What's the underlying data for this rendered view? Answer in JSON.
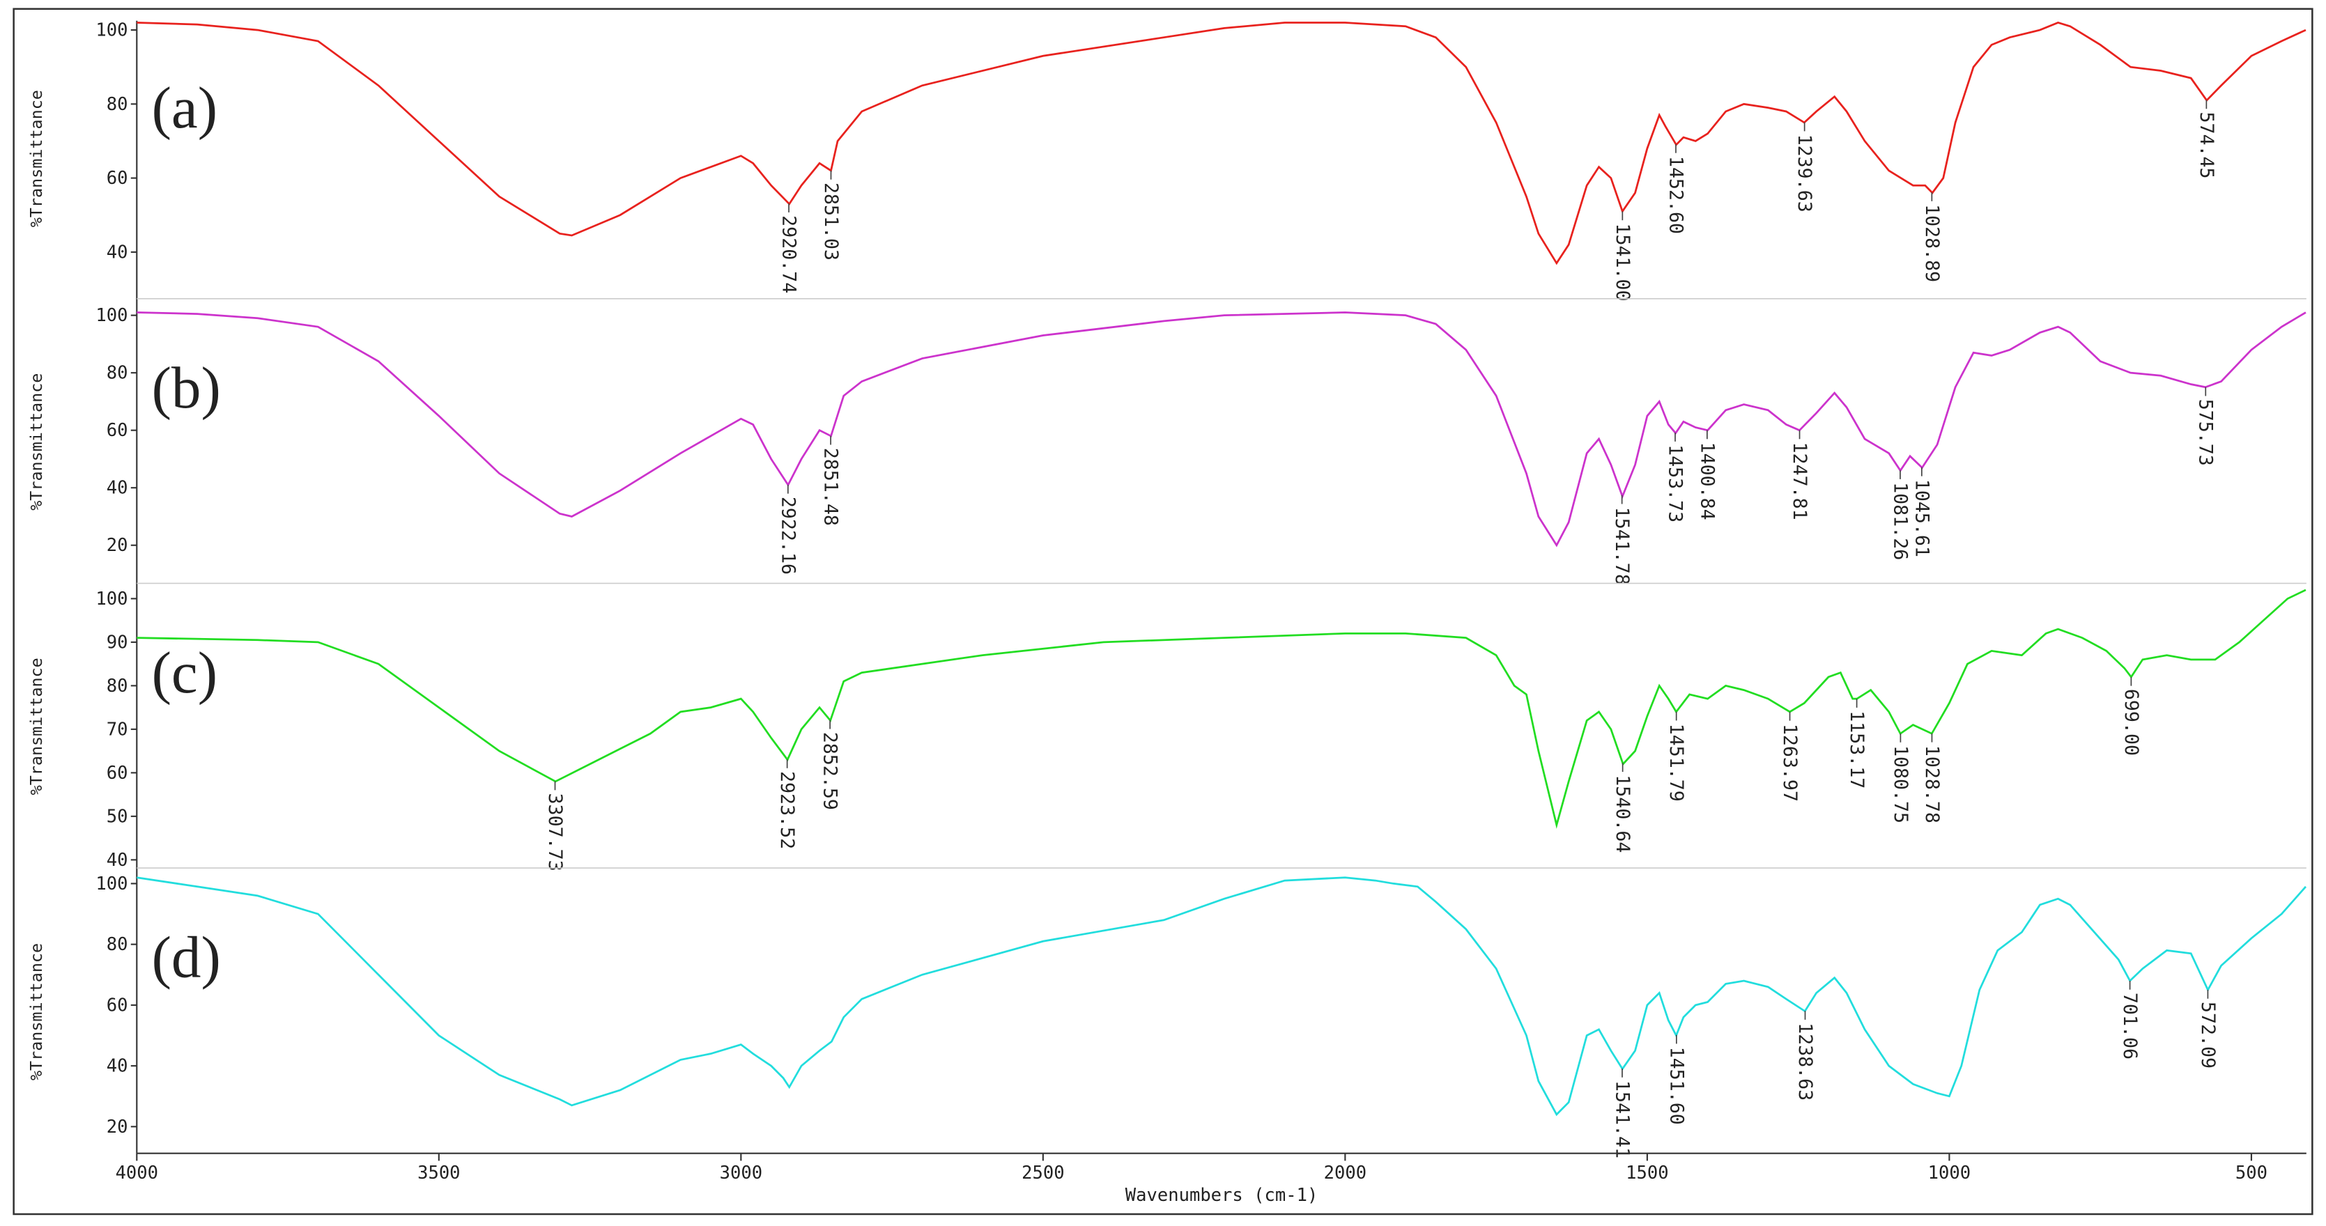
{
  "chart_data": [
    {
      "type": "line",
      "title": "(a)",
      "ylabel": "%Transmittance",
      "xlim": [
        4000,
        409
      ],
      "ylim": [
        28,
        102.5
      ],
      "yticks": [
        40,
        60,
        80,
        100
      ],
      "series": [
        {
          "name": "(a)",
          "color": "#e8221e",
          "x": [
            4000,
            3900,
            3800,
            3700,
            3600,
            3500,
            3400,
            3300,
            3280,
            3200,
            3100,
            3050,
            3000,
            2980,
            2950,
            2920,
            2900,
            2870,
            2851,
            2840,
            2800,
            2700,
            2500,
            2300,
            2200,
            2100,
            2000,
            1900,
            1850,
            1800,
            1750,
            1700,
            1680,
            1650,
            1630,
            1600,
            1580,
            1560,
            1541,
            1520,
            1500,
            1480,
            1470,
            1452,
            1440,
            1420,
            1400,
            1370,
            1340,
            1300,
            1270,
            1240,
            1220,
            1190,
            1170,
            1140,
            1100,
            1060,
            1040,
            1028,
            1010,
            990,
            960,
            930,
            900,
            850,
            820,
            800,
            750,
            700,
            650,
            600,
            574,
            550,
            500,
            450,
            410
          ],
          "values": [
            102,
            101.5,
            100,
            97,
            85,
            70,
            55,
            45,
            44.5,
            50,
            60,
            63,
            66,
            64,
            58,
            53,
            58,
            64,
            62,
            70,
            78,
            85,
            93,
            98,
            100.5,
            102,
            102,
            101,
            98,
            90,
            75,
            55,
            45,
            37,
            42,
            58,
            63,
            60,
            51,
            56,
            68,
            77,
            74,
            69,
            71,
            70,
            72,
            78,
            80,
            79,
            78,
            75,
            78,
            82,
            78,
            70,
            62,
            58,
            58,
            56,
            60,
            75,
            90,
            96,
            98,
            100,
            102,
            101,
            96,
            90,
            89,
            87,
            81,
            85,
            93,
            97,
            100
          ]
        }
      ],
      "peaks": [
        2920.74,
        2851.03,
        {
          "value": 1541,
          "label": "1541.00"
        },
        {
          "value": 1452.6,
          "label": "1452.60"
        },
        1239.63,
        1028.89,
        574.45
      ]
    },
    {
      "type": "line",
      "title": "(b)",
      "ylabel": "%Transmittance",
      "xlim": [
        4000,
        409
      ],
      "ylim": [
        7,
        105
      ],
      "yticks": [
        20,
        40,
        60,
        80,
        100
      ],
      "series": [
        {
          "name": "(b)",
          "color": "#cc33cc",
          "x": [
            4000,
            3900,
            3800,
            3700,
            3600,
            3500,
            3400,
            3300,
            3280,
            3200,
            3100,
            3050,
            3000,
            2980,
            2950,
            2922,
            2900,
            2870,
            2851,
            2830,
            2800,
            2700,
            2500,
            2300,
            2200,
            2000,
            1900,
            1850,
            1800,
            1750,
            1700,
            1680,
            1650,
            1630,
            1600,
            1580,
            1560,
            1541,
            1520,
            1500,
            1480,
            1465,
            1453,
            1440,
            1420,
            1400,
            1370,
            1340,
            1300,
            1270,
            1248,
            1220,
            1190,
            1170,
            1140,
            1100,
            1081,
            1065,
            1045,
            1020,
            990,
            960,
            930,
            900,
            850,
            820,
            800,
            750,
            700,
            650,
            600,
            576,
            550,
            500,
            450,
            410
          ],
          "values": [
            101,
            100.5,
            99,
            96,
            84,
            65,
            45,
            31,
            30,
            39,
            52,
            58,
            64,
            62,
            50,
            41,
            50,
            60,
            58,
            72,
            77,
            85,
            93,
            98,
            100,
            101,
            100,
            97,
            88,
            72,
            45,
            30,
            20,
            28,
            52,
            57,
            48,
            37,
            48,
            65,
            70,
            62,
            59,
            63,
            61,
            60,
            67,
            69,
            67,
            62,
            60,
            66,
            73,
            68,
            57,
            52,
            46,
            51,
            47,
            55,
            75,
            87,
            86,
            88,
            94,
            96,
            94,
            84,
            80,
            79,
            76,
            75,
            77,
            88,
            96,
            101
          ]
        }
      ],
      "peaks": [
        2922.16,
        2851.48,
        1541.78,
        1453.73,
        1400.84,
        1247.81,
        1081.26,
        1045.61,
        575.73
      ]
    },
    {
      "type": "line",
      "title": "(c)",
      "ylabel": "%Transmittance",
      "xlim": [
        4000,
        409
      ],
      "ylim": [
        38.3,
        103
      ],
      "yticks": [
        40,
        50,
        60,
        70,
        80,
        90,
        100
      ],
      "series": [
        {
          "name": "(c)",
          "color": "#22dd22",
          "x": [
            4000,
            3800,
            3700,
            3600,
            3500,
            3400,
            3307,
            3250,
            3150,
            3100,
            3050,
            3000,
            2980,
            2950,
            2923,
            2900,
            2870,
            2852,
            2830,
            2800,
            2600,
            2400,
            2200,
            2000,
            1900,
            1800,
            1750,
            1720,
            1700,
            1680,
            1650,
            1630,
            1600,
            1580,
            1560,
            1540,
            1520,
            1500,
            1480,
            1465,
            1452,
            1430,
            1400,
            1370,
            1340,
            1300,
            1264,
            1240,
            1200,
            1180,
            1160,
            1153,
            1130,
            1100,
            1081,
            1060,
            1029,
            1000,
            970,
            930,
            880,
            840,
            820,
            780,
            740,
            710,
            699,
            680,
            640,
            600,
            560,
            520,
            480,
            440,
            410
          ],
          "values": [
            91,
            90.5,
            90,
            85,
            75,
            65,
            58,
            62,
            69,
            74,
            75,
            77,
            74,
            68,
            63,
            70,
            75,
            72,
            81,
            83,
            87,
            90,
            91,
            92,
            92,
            91,
            87,
            80,
            78,
            65,
            48,
            58,
            72,
            74,
            70,
            62,
            65,
            73,
            80,
            77,
            74,
            78,
            77,
            80,
            79,
            77,
            74,
            76,
            82,
            83,
            77,
            77,
            79,
            74,
            69,
            71,
            69,
            76,
            85,
            88,
            87,
            92,
            93,
            91,
            88,
            84,
            82,
            86,
            87,
            86,
            86,
            90,
            95,
            100,
            102
          ]
        }
      ],
      "peaks": [
        3307.73,
        2923.52,
        2852.59,
        1540.64,
        1451.79,
        1263.97,
        1153.17,
        1080.75,
        1028.78,
        {
          "value": 699,
          "label": "699.00"
        }
      ]
    },
    {
      "type": "line",
      "title": "(d)",
      "ylabel": "%Transmittance",
      "xlabel": "Wavenumbers (cm-1)",
      "xlim": [
        4000,
        409
      ],
      "ylim": [
        11.2,
        104.4
      ],
      "yticks": [
        20,
        40,
        60,
        80,
        100
      ],
      "xticks": [
        4000,
        3500,
        3000,
        2500,
        2000,
        1500,
        1000,
        500
      ],
      "series": [
        {
          "name": "(d)",
          "color": "#22dddd",
          "x": [
            4000,
            3900,
            3800,
            3700,
            3600,
            3500,
            3400,
            3300,
            3280,
            3200,
            3100,
            3050,
            3000,
            2980,
            2950,
            2930,
            2920,
            2900,
            2870,
            2850,
            2830,
            2800,
            2700,
            2500,
            2300,
            2200,
            2100,
            2000,
            1950,
            1920,
            1880,
            1850,
            1800,
            1750,
            1700,
            1680,
            1650,
            1630,
            1600,
            1580,
            1560,
            1541,
            1520,
            1500,
            1480,
            1465,
            1452,
            1440,
            1420,
            1400,
            1370,
            1340,
            1300,
            1270,
            1239,
            1220,
            1190,
            1170,
            1140,
            1100,
            1060,
            1020,
            1000,
            980,
            950,
            920,
            880,
            850,
            820,
            800,
            760,
            720,
            701,
            680,
            640,
            600,
            572,
            550,
            500,
            450,
            410
          ],
          "values": [
            102,
            99,
            96,
            90,
            70,
            50,
            37,
            29,
            27,
            32,
            42,
            44,
            47,
            44,
            40,
            36,
            33,
            40,
            45,
            48,
            56,
            62,
            70,
            81,
            88,
            95,
            101,
            102,
            101,
            100,
            99,
            94,
            85,
            72,
            50,
            35,
            24,
            28,
            50,
            52,
            45,
            39,
            45,
            60,
            64,
            55,
            50,
            56,
            60,
            61,
            67,
            68,
            66,
            62,
            58,
            64,
            69,
            64,
            52,
            40,
            34,
            31,
            30,
            40,
            65,
            78,
            84,
            93,
            95,
            93,
            84,
            75,
            68,
            72,
            78,
            77,
            65,
            73,
            82,
            90,
            99
          ]
        }
      ],
      "peaks": [
        1541.41,
        {
          "value": 1451.6,
          "label": "1451.60"
        },
        1238.63,
        701.06,
        572.09
      ]
    }
  ]
}
